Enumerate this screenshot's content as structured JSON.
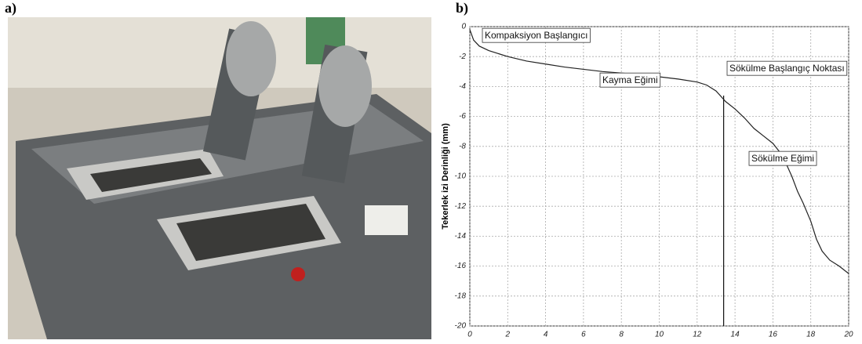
{
  "panel_labels": [
    "a)",
    "b)"
  ],
  "chart_data": {
    "type": "line",
    "y_label": "Tekerlek izi Derinliği (mm)",
    "annotations": [
      "Kompaksiyon Başlangıcı",
      "Kayma Eğimi",
      "Sökülme Başlangıç Noktası",
      "Sökülme Eğimi"
    ],
    "vertical_line": 13.4,
    "x": [
      0,
      0.2,
      0.5,
      1,
      2,
      3,
      4,
      5,
      6,
      7,
      8,
      9,
      10,
      11,
      12,
      12.5,
      13,
      13.5,
      14,
      14.5,
      15,
      15.5,
      16,
      16.5,
      17,
      17.3,
      17.6,
      18,
      18.3,
      18.6,
      19,
      19.5,
      20
    ],
    "series": [
      {
        "color": "#222222",
        "values": [
          -0.2,
          -0.9,
          -1.3,
          -1.6,
          -2.0,
          -2.3,
          -2.5,
          -2.7,
          -2.85,
          -3.0,
          -3.1,
          -3.2,
          -3.35,
          -3.5,
          -3.7,
          -3.9,
          -4.3,
          -5.0,
          -5.5,
          -6.1,
          -6.8,
          -7.3,
          -7.8,
          -8.6,
          -10.0,
          -11.0,
          -11.8,
          -13.0,
          -14.2,
          -15.0,
          -15.6,
          -16.0,
          -16.5
        ]
      }
    ],
    "xlim": [
      0,
      20
    ],
    "ylim": [
      -20,
      0
    ],
    "xticks": [
      0,
      2,
      4,
      6,
      8,
      10,
      12,
      14,
      16,
      18,
      20
    ],
    "yticks": [
      0,
      -2,
      -4,
      -6,
      -8,
      -10,
      -12,
      -14,
      -16,
      -18,
      -20
    ],
    "grid": true
  }
}
